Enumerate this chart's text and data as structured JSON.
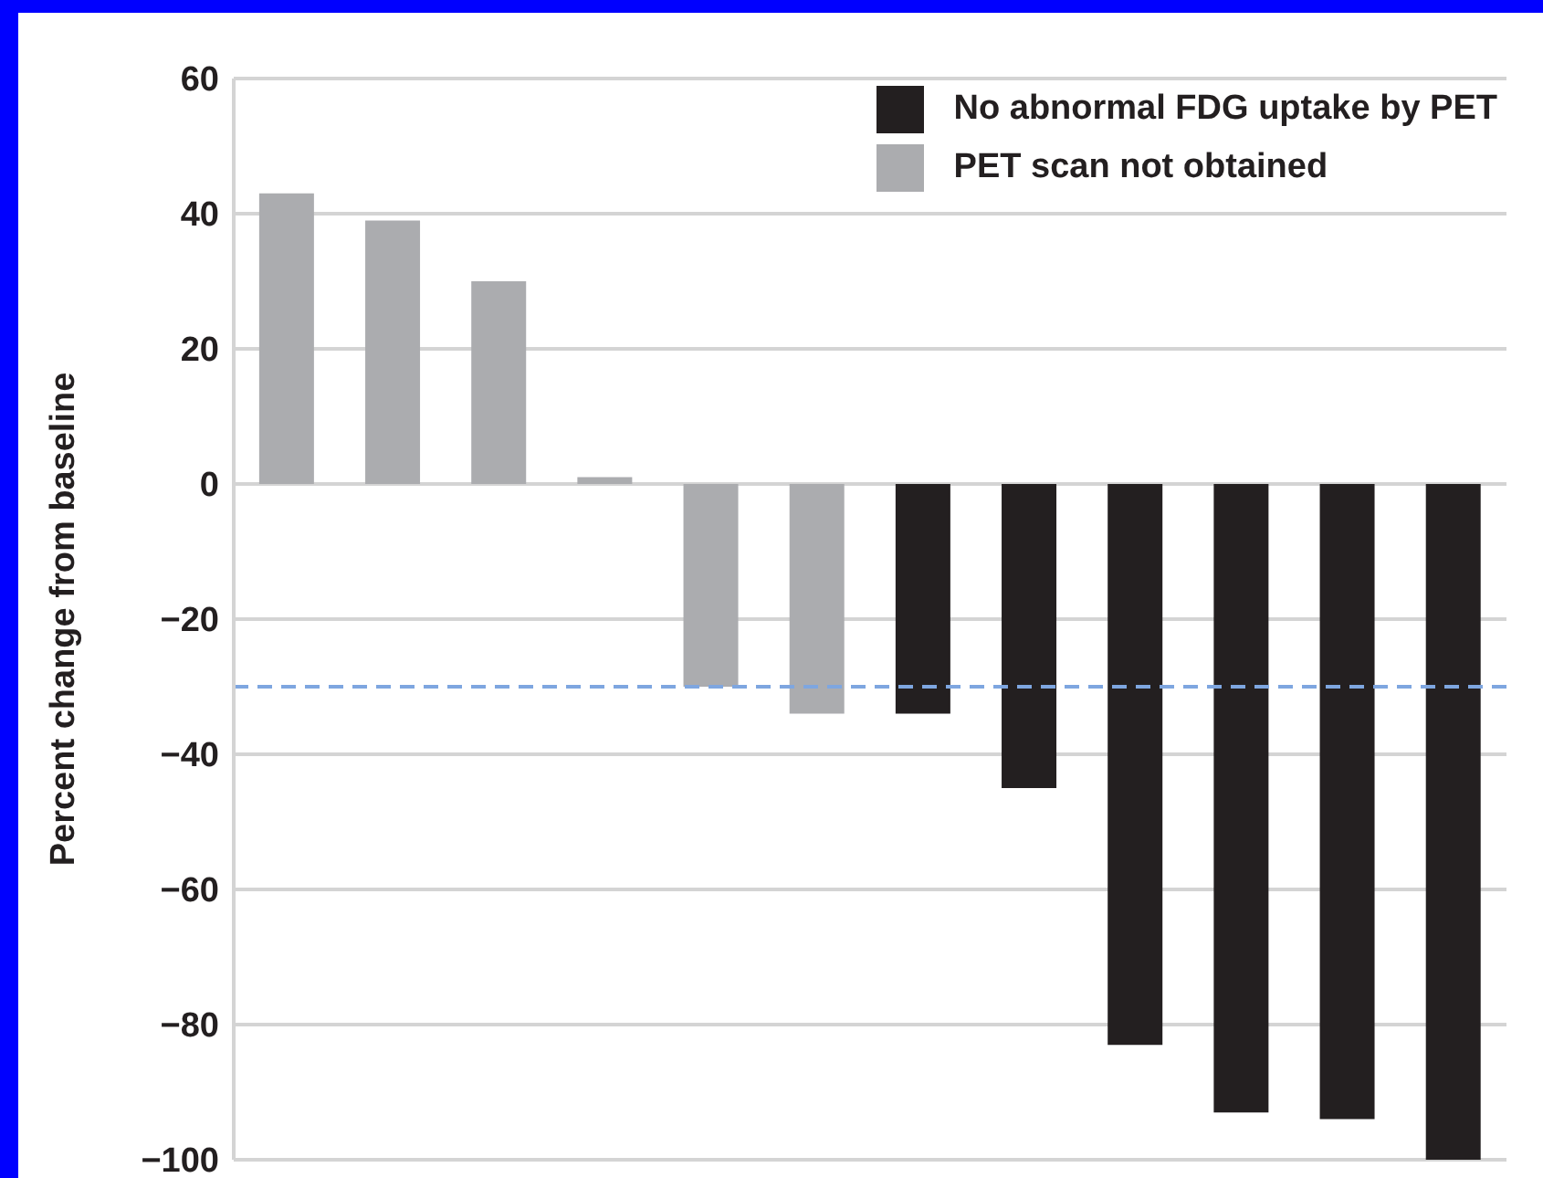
{
  "chart_data": {
    "type": "bar",
    "ylabel": "Percent change from baseline",
    "categories": [
      null,
      null,
      null,
      null,
      null,
      null,
      null,
      null,
      null,
      null,
      null,
      null
    ],
    "series": [
      {
        "name": "No abnormal FDG uptake by PET",
        "color": "#231f20",
        "values": [
          null,
          null,
          null,
          null,
          null,
          null,
          -34,
          -45,
          -83,
          -93,
          -94,
          -100
        ]
      },
      {
        "name": "PET scan not obtained",
        "color": "#abacaf",
        "values": [
          43,
          39,
          30,
          1,
          -30,
          -34,
          null,
          null,
          null,
          null,
          null,
          null
        ]
      }
    ],
    "ylim": [
      -100,
      60
    ],
    "yticks": [
      -100,
      -80,
      -60,
      -40,
      -20,
      0,
      20,
      40,
      60
    ],
    "ref_lines": [
      {
        "axis": "y",
        "value": -30,
        "color": "#7ea6e0",
        "line_style": "dashed"
      }
    ],
    "grid": "y",
    "legend": "top right",
    "tick_labels": "y"
  }
}
